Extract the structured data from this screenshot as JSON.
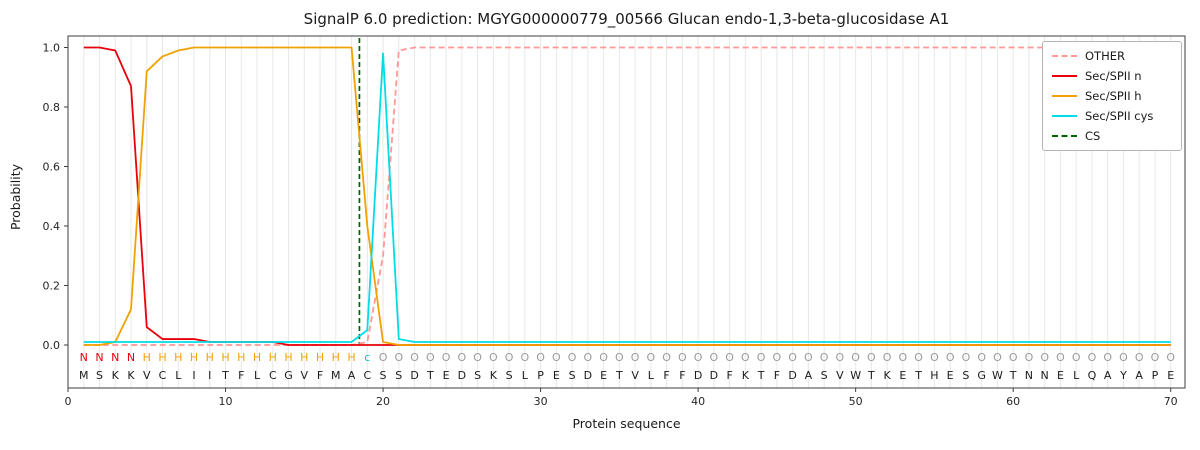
{
  "title": "SignalP 6.0 prediction: MGYG000000779_00566 Glucan endo-1,3-beta-glucosidase A1",
  "axes": {
    "xlabel": "Protein sequence",
    "ylabel": "Probability",
    "xticks": [
      0,
      10,
      20,
      30,
      40,
      50,
      60,
      70
    ],
    "yticks": [
      "0.0",
      "0.2",
      "0.4",
      "0.6",
      "0.8",
      "1.0"
    ],
    "xlim": [
      0,
      71
    ],
    "ylim": [
      0,
      1.05
    ],
    "grid": "vertical-per-residue",
    "gridline_color": "#e8e8e8",
    "frame_color": "#3c3c3c"
  },
  "legend": {
    "position": "upper-right",
    "items": [
      {
        "label": "OTHER",
        "color": "#ff9896",
        "style": "dashed"
      },
      {
        "label": "Sec/SPII n",
        "color": "#e8000b",
        "style": "solid"
      },
      {
        "label": "Sec/SPII h",
        "color": "#f0a202",
        "style": "solid"
      },
      {
        "label": "Sec/SPII cys",
        "color": "#00dde6",
        "style": "solid"
      },
      {
        "label": "CS",
        "color": "#006400",
        "style": "dashed"
      }
    ]
  },
  "sequence": {
    "residues": "MSKKVCLIITFLCGVFMACSSDTEDSKSLPESDETVLFFDDFKTFDASVWTKETHESGWTNNELQAYAPE",
    "annotation": "NNNNHHHHHHHHHHHHHHcOOOOOOOOOOOOOOOOOOOOOOOOOOOOOOOOOOOOOOOOOOOOOOOOOOO",
    "annotation_colors": {
      "N": "#e8000b",
      "H": "#f0a202",
      "c": "#00c4cc",
      "O": "#9a9a9a"
    },
    "residue_color": "#1a1a1a"
  },
  "chart_data": {
    "type": "line",
    "x": [
      1,
      2,
      3,
      4,
      5,
      6,
      7,
      8,
      9,
      10,
      11,
      12,
      13,
      14,
      15,
      16,
      17,
      18,
      19,
      20,
      21,
      22,
      23,
      24,
      25,
      26,
      27,
      28,
      29,
      30,
      31,
      32,
      33,
      34,
      35,
      36,
      37,
      38,
      39,
      40,
      41,
      42,
      43,
      44,
      45,
      46,
      47,
      48,
      49,
      50,
      51,
      52,
      53,
      54,
      55,
      56,
      57,
      58,
      59,
      60,
      61,
      62,
      63,
      64,
      65,
      66,
      67,
      68,
      69,
      70
    ],
    "series": [
      {
        "name": "OTHER",
        "color": "#ff9896",
        "style": "dashed",
        "values": [
          0,
          0,
          0,
          0,
          0,
          0,
          0,
          0,
          0,
          0,
          0,
          0,
          0,
          0,
          0,
          0,
          0,
          0,
          0.01,
          0.3,
          0.99,
          1,
          1,
          1,
          1,
          1,
          1,
          1,
          1,
          1,
          1,
          1,
          1,
          1,
          1,
          1,
          1,
          1,
          1,
          1,
          1,
          1,
          1,
          1,
          1,
          1,
          1,
          1,
          1,
          1,
          1,
          1,
          1,
          1,
          1,
          1,
          1,
          1,
          1,
          1,
          1,
          1,
          1,
          1,
          1,
          1,
          1,
          1,
          1,
          1
        ]
      },
      {
        "name": "Sec/SPII n",
        "color": "#e8000b",
        "style": "solid",
        "values": [
          1,
          1,
          0.99,
          0.87,
          0.06,
          0.02,
          0.02,
          0.02,
          0.01,
          0.01,
          0.01,
          0.01,
          0.01,
          0,
          0,
          0,
          0,
          0,
          0,
          0,
          0,
          0,
          0,
          0,
          0,
          0,
          0,
          0,
          0,
          0,
          0,
          0,
          0,
          0,
          0,
          0,
          0,
          0,
          0,
          0,
          0,
          0,
          0,
          0,
          0,
          0,
          0,
          0,
          0,
          0,
          0,
          0,
          0,
          0,
          0,
          0,
          0,
          0,
          0,
          0,
          0,
          0,
          0,
          0,
          0,
          0,
          0,
          0,
          0,
          0
        ]
      },
      {
        "name": "Sec/SPII h",
        "color": "#f0a202",
        "style": "solid",
        "values": [
          0,
          0,
          0.01,
          0.12,
          0.92,
          0.97,
          0.99,
          1,
          1,
          1,
          1,
          1,
          1,
          1,
          1,
          1,
          1,
          1,
          0.4,
          0.01,
          0,
          0,
          0,
          0,
          0,
          0,
          0,
          0,
          0,
          0,
          0,
          0,
          0,
          0,
          0,
          0,
          0,
          0,
          0,
          0,
          0,
          0,
          0,
          0,
          0,
          0,
          0,
          0,
          0,
          0,
          0,
          0,
          0,
          0,
          0,
          0,
          0,
          0,
          0,
          0,
          0,
          0,
          0,
          0,
          0,
          0,
          0,
          0,
          0,
          0
        ]
      },
      {
        "name": "Sec/SPII cys",
        "color": "#00dde6",
        "style": "solid",
        "values": [
          0.01,
          0.01,
          0.01,
          0.01,
          0.01,
          0.01,
          0.01,
          0.01,
          0.01,
          0.01,
          0.01,
          0.01,
          0.01,
          0.01,
          0.01,
          0.01,
          0.01,
          0.01,
          0.05,
          0.98,
          0.02,
          0.01,
          0.01,
          0.01,
          0.01,
          0.01,
          0.01,
          0.01,
          0.01,
          0.01,
          0.01,
          0.01,
          0.01,
          0.01,
          0.01,
          0.01,
          0.01,
          0.01,
          0.01,
          0.01,
          0.01,
          0.01,
          0.01,
          0.01,
          0.01,
          0.01,
          0.01,
          0.01,
          0.01,
          0.01,
          0.01,
          0.01,
          0.01,
          0.01,
          0.01,
          0.01,
          0.01,
          0.01,
          0.01,
          0.01,
          0.01,
          0.01,
          0.01,
          0.01,
          0.01,
          0.01,
          0.01,
          0.01,
          0.01,
          0.01
        ]
      }
    ],
    "cs_marker": {
      "x": 18.5,
      "color": "#006400",
      "style": "dashed"
    }
  }
}
